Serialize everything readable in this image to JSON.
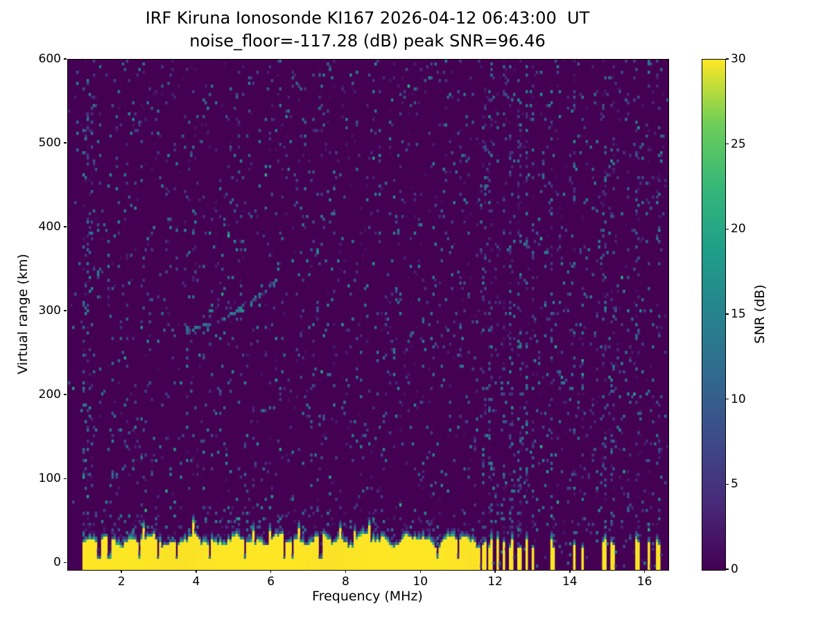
{
  "chart_data": {
    "type": "heatmap",
    "title": "IRF Kiruna Ionosonde KI167 2026-04-12 06:43:00  UT",
    "subtitle": "noise_floor=-117.28 (dB) peak SNR=96.46",
    "xlabel": "Frequency (MHz)",
    "ylabel": "Virtual range (km)",
    "xlim": [
      0.55,
      16.62
    ],
    "ylim": [
      -8,
      600
    ],
    "x_ticks": [
      2,
      4,
      6,
      8,
      10,
      12,
      14,
      16
    ],
    "y_ticks": [
      0,
      100,
      200,
      300,
      400,
      500,
      600
    ],
    "colorbar": {
      "label": "SNR (dB)",
      "ticks": [
        0,
        5,
        10,
        15,
        20,
        25,
        30
      ],
      "vmin": 0,
      "vmax": 30,
      "colormap": "viridis"
    },
    "viridis_stops": [
      "#440154",
      "#482878",
      "#3e4989",
      "#31688e",
      "#26828e",
      "#1f9e89",
      "#35b779",
      "#6ece58",
      "#fde725"
    ],
    "data_freq_range": [
      0.95,
      16.45
    ],
    "grid": {
      "nx": 290,
      "ny": 184
    },
    "noise": {
      "seed": 42,
      "speckle_probability": 0.06,
      "speckle_max_db": 16
    },
    "ground_clutter": {
      "freq_start": 0.95,
      "freq_end": 11.58,
      "base_top_km": 24,
      "variation_km": 14,
      "snr_db": 30,
      "fringe_km": 7,
      "notch_depth": 0.88,
      "notches": [
        [
          1.38,
          0.06
        ],
        [
          1.65,
          0.09
        ],
        [
          2.45,
          0.07
        ],
        [
          2.95,
          0.07
        ],
        [
          3.45,
          0.06
        ],
        [
          4.35,
          0.05
        ],
        [
          5.3,
          0.06
        ],
        [
          6.35,
          0.08
        ],
        [
          6.55,
          0.05
        ],
        [
          7.3,
          0.09
        ],
        [
          8.2,
          0.04
        ],
        [
          10.45,
          0.06
        ],
        [
          11.0,
          0.04
        ]
      ]
    },
    "clutter_bars": [
      [
        11.68,
        0.09
      ],
      [
        11.86,
        0.09
      ],
      [
        12.04,
        0.09
      ],
      [
        12.22,
        0.09
      ],
      [
        12.42,
        0.09
      ],
      [
        12.62,
        0.09
      ],
      [
        12.82,
        0.09
      ],
      [
        13.0,
        0.08
      ],
      [
        13.5,
        0.09
      ],
      [
        14.1,
        0.09
      ],
      [
        14.32,
        0.07
      ],
      [
        14.9,
        0.09
      ],
      [
        15.12,
        0.07
      ],
      [
        15.8,
        0.09
      ],
      [
        16.1,
        0.08
      ],
      [
        16.35,
        0.09
      ]
    ],
    "rfi_columns": [
      [
        11.68,
        0.08,
        0.14
      ],
      [
        11.86,
        0.08,
        0.16
      ],
      [
        12.04,
        0.08,
        0.14
      ],
      [
        12.22,
        0.08,
        0.12
      ],
      [
        12.42,
        0.08,
        0.14
      ],
      [
        12.62,
        0.09,
        0.24
      ],
      [
        12.82,
        0.09,
        0.26
      ],
      [
        13.0,
        0.08,
        0.16
      ],
      [
        13.5,
        0.08,
        0.14
      ],
      [
        14.1,
        0.09,
        0.2
      ],
      [
        14.32,
        0.07,
        0.1
      ],
      [
        14.9,
        0.09,
        0.18
      ],
      [
        15.12,
        0.07,
        0.1
      ],
      [
        15.55,
        0.06,
        0.07
      ],
      [
        15.8,
        0.08,
        0.14
      ],
      [
        16.1,
        0.08,
        0.14
      ],
      [
        16.35,
        0.08,
        0.1
      ]
    ],
    "echo_trace": {
      "f_start": 3.65,
      "f_end": 6.15,
      "r0_km": 277,
      "slope": 5.5,
      "quad": 7.5,
      "sigma_km": 2.2,
      "density": 0.38,
      "dense_f": [
        4.85,
        5.3
      ]
    },
    "bright_spots": [
      [
        4.98,
        300,
        13
      ],
      [
        5.02,
        304,
        15
      ],
      [
        5.07,
        307,
        12
      ],
      [
        5.12,
        302,
        11
      ],
      [
        5.18,
        309,
        10
      ],
      [
        6.08,
        338,
        16
      ],
      [
        6.02,
        333,
        12
      ],
      [
        4.15,
        555,
        12
      ],
      [
        4.2,
        551,
        10
      ],
      [
        3.72,
        277,
        10
      ],
      [
        3.78,
        279,
        9
      ]
    ]
  }
}
